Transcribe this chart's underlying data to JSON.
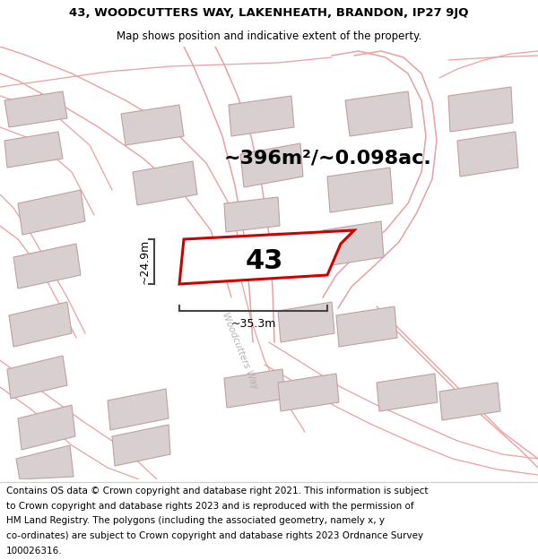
{
  "title_line1": "43, WOODCUTTERS WAY, LAKENHEATH, BRANDON, IP27 9JQ",
  "title_line2": "Map shows position and indicative extent of the property.",
  "area_text": "~396m²/~0.098ac.",
  "label_43": "43",
  "dim_height": "~24.9m",
  "dim_width": "~35.3m",
  "street_label": "Woodcutters Way",
  "footer_lines": [
    "Contains OS data © Crown copyright and database right 2021. This information is subject",
    "to Crown copyright and database rights 2023 and is reproduced with the permission of",
    "HM Land Registry. The polygons (including the associated geometry, namely x, y",
    "co-ordinates) are subject to Crown copyright and database rights 2023 Ordnance Survey",
    "100026316."
  ],
  "highlight_color": "#cc0000",
  "road_color": "#e8a0a0",
  "building_fill": "#d8d0d0",
  "building_edge": "#c0a0a0",
  "dim_line_color": "#444444",
  "street_text_color": "#b8b0b0",
  "title_fontsize": 9.5,
  "subtitle_fontsize": 8.5,
  "footer_fontsize": 7.5,
  "area_fontsize": 16,
  "label_fontsize": 22,
  "dim_fontsize": 9,
  "street_fontsize": 7.5
}
